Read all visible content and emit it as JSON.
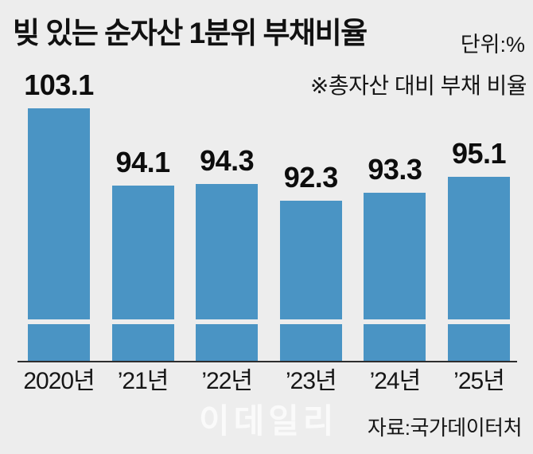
{
  "header": {
    "title": "빚 있는 순자산 1분위 부채비율",
    "unit_label": "단위:%",
    "note": "※총자산 대비 부채 비율"
  },
  "footer": {
    "watermark": "이데일리",
    "source": "자료:국가데이터처"
  },
  "colors": {
    "background": "#ededed",
    "bar": "#4a94c4",
    "axis": "#2e2e2e",
    "text": "#111111",
    "watermark": "#ffffff"
  },
  "chart_data": {
    "type": "bar",
    "title": "빚 있는 순자산 1분위 부채비율",
    "unit": "%",
    "note": "※총자산 대비 부채 비율",
    "source": "자료:국가데이터처",
    "categories": [
      "2020년",
      "’21년",
      "’22년",
      "’23년",
      "’24년",
      "’25년"
    ],
    "values": [
      103.1,
      94.1,
      94.3,
      92.3,
      93.3,
      95.1
    ],
    "value_labels": [
      "103.1",
      "94.1",
      "94.3",
      "92.3",
      "93.3",
      "95.1"
    ],
    "bar_color": "#4a94c4",
    "axis_break": true,
    "grid": false,
    "legend": "none"
  }
}
